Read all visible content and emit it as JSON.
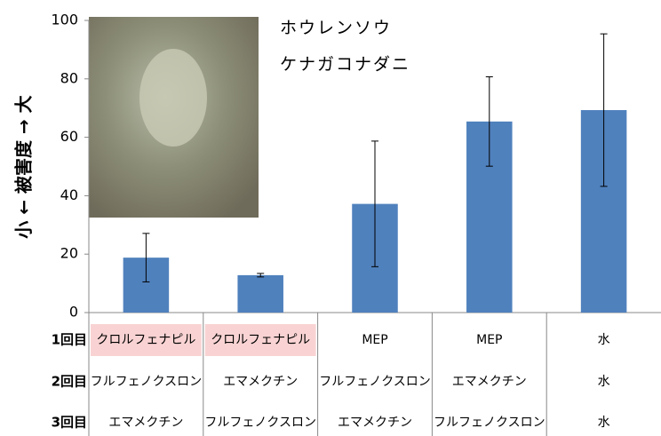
{
  "chart_data": {
    "type": "bar",
    "y_label": "小 ← 被害度 → 大",
    "annotations": [
      "ホウレンソウ",
      "ケナガコナダニ"
    ],
    "values": [
      18.8,
      12.8,
      37.2,
      65.4,
      69.3
    ],
    "errors": [
      8.3,
      0.6,
      21.5,
      15.3,
      26.1
    ],
    "color": "#4f81bd",
    "ylim": [
      0,
      100
    ],
    "yticks": [
      0,
      20,
      40,
      60,
      80,
      100
    ],
    "highlight_color": "#f9d3d3",
    "treatment_rows": [
      {
        "label": "1回目",
        "cells": [
          "クロルフェナピル",
          "クロルフェナピル",
          "MEP",
          "MEP",
          "水"
        ],
        "highlighted": [
          true,
          true,
          false,
          false,
          false
        ]
      },
      {
        "label": "2回目",
        "cells": [
          "フルフェノクスロン",
          "エマメクチン",
          "フルフェノクスロン",
          "エマメクチン",
          "水"
        ],
        "highlighted": [
          false,
          false,
          false,
          false,
          false
        ]
      },
      {
        "label": "3回目",
        "cells": [
          "エマメクチン",
          "フルフェノクスロン",
          "エマメクチン",
          "フルフェノクスロン",
          "水"
        ],
        "highlighted": [
          false,
          false,
          false,
          false,
          false
        ]
      }
    ]
  }
}
